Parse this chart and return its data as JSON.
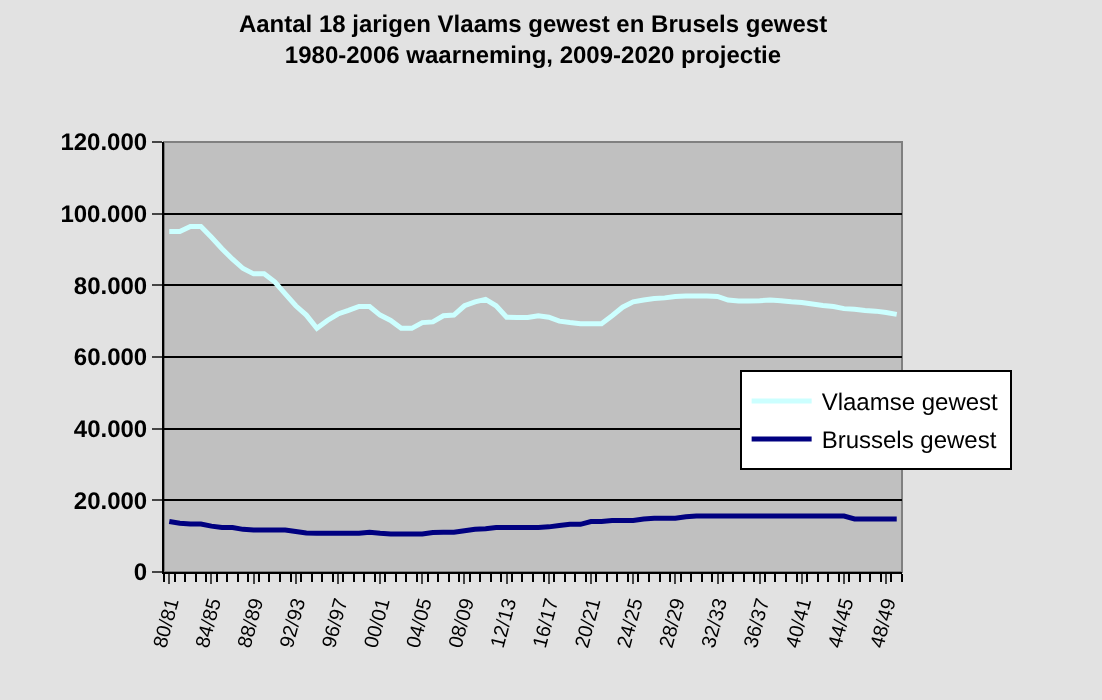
{
  "chart_data": {
    "type": "line",
    "title": "Aantal 18 jarigen Vlaams gewest en Brusels gewest",
    "subtitle": "1980-2006 waarneming, 2009-2020 projectie",
    "categories": [
      "80/81",
      null,
      null,
      null,
      "84/85",
      null,
      null,
      null,
      "88/89",
      null,
      null,
      null,
      "92/93",
      null,
      null,
      null,
      "96/97",
      null,
      null,
      null,
      "00/01",
      null,
      null,
      null,
      "04/05",
      null,
      null,
      null,
      "08/09",
      null,
      null,
      null,
      "12/13",
      null,
      null,
      null,
      "16/17",
      null,
      null,
      null,
      "20/21",
      null,
      null,
      null,
      "24/25",
      null,
      null,
      null,
      "28/29",
      null,
      null,
      null,
      "32/33",
      null,
      null,
      null,
      "36/37",
      null,
      null,
      null,
      "40/41",
      null,
      null,
      null,
      "44/45",
      null,
      null,
      null,
      "48/49",
      null
    ],
    "series": [
      {
        "name": "Vlaamse gewest",
        "color": "#ccffff",
        "values": [
          95000,
          95000,
          96400,
          96400,
          93400,
          90200,
          87300,
          84700,
          83200,
          83200,
          81000,
          77600,
          74300,
          71700,
          68000,
          70200,
          72000,
          73000,
          74100,
          74100,
          71700,
          70200,
          68000,
          68000,
          69600,
          69800,
          71500,
          71700,
          74300,
          75400,
          76100,
          74300,
          71100,
          71000,
          71000,
          71500,
          71100,
          70000,
          69600,
          69300,
          69300,
          69300,
          71500,
          73900,
          75400,
          75900,
          76300,
          76500,
          76900,
          77000,
          77000,
          77000,
          76900,
          75900,
          75600,
          75600,
          75700,
          75900,
          75700,
          75400,
          75200,
          74800,
          74400,
          74100,
          73500,
          73300,
          73000,
          72800,
          72400,
          71900
        ]
      },
      {
        "name": "Brussels gewest",
        "color": "#000080",
        "values": [
          14100,
          13600,
          13400,
          13400,
          12800,
          12400,
          12400,
          11900,
          11700,
          11700,
          11700,
          11700,
          11300,
          10900,
          10800,
          10800,
          10800,
          10800,
          10800,
          11100,
          10800,
          10600,
          10600,
          10600,
          10600,
          11000,
          11100,
          11100,
          11500,
          11900,
          12100,
          12400,
          12400,
          12400,
          12400,
          12400,
          12600,
          13000,
          13300,
          13300,
          14100,
          14100,
          14400,
          14400,
          14400,
          14800,
          15000,
          15000,
          15000,
          15400,
          15600,
          15600,
          15600,
          15600,
          15600,
          15600,
          15600,
          15600,
          15600,
          15600,
          15600,
          15600,
          15600,
          15600,
          15600,
          14800,
          14800,
          14800,
          14800,
          14800
        ]
      }
    ],
    "ylim": [
      0,
      120000
    ],
    "yticks": [
      {
        "value": 0,
        "label": "0"
      },
      {
        "value": 20000,
        "label": "20.000"
      },
      {
        "value": 40000,
        "label": "40.000"
      },
      {
        "value": 60000,
        "label": "60.000"
      },
      {
        "value": 80000,
        "label": "80.000"
      },
      {
        "value": 100000,
        "label": "100.000"
      },
      {
        "value": 120000,
        "label": "120.000"
      }
    ],
    "grid": "y",
    "legend": "right",
    "marker": "none",
    "line_style": "solid"
  }
}
